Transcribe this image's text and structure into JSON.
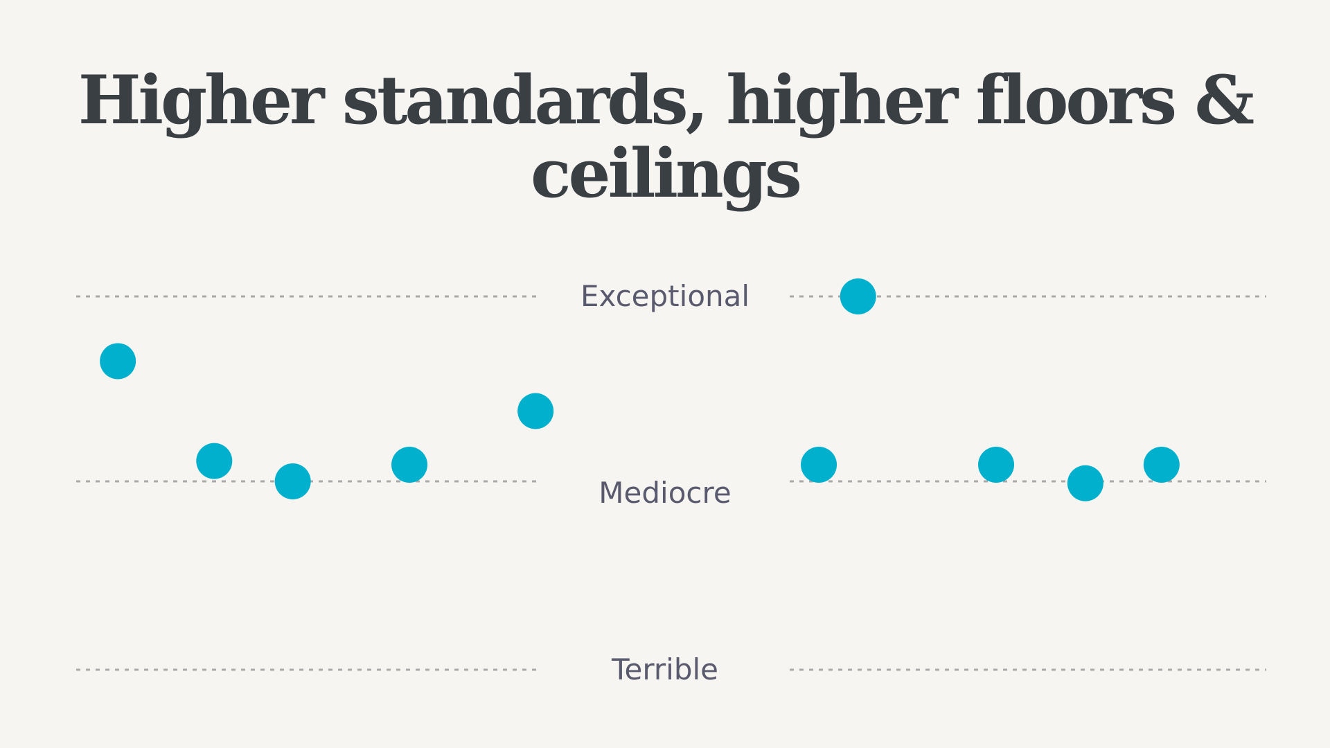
{
  "title": "Higher standards, higher floors & ceilings",
  "chart_data": {
    "type": "scatter",
    "title": "Higher standards, higher floors & ceilings",
    "levels": [
      {
        "name": "Exceptional",
        "value": 2
      },
      {
        "name": "Mediocre",
        "value": 1
      },
      {
        "name": "Terrible",
        "value": 0
      }
    ],
    "ylim": [
      0,
      2
    ],
    "xlim": [
      0,
      100
    ],
    "grid": false,
    "legend": "none",
    "colors": {
      "point": "#00b0cc",
      "guide": "#a9a9a9",
      "label": "#5a5a6e",
      "title": "#3a3f44"
    },
    "groups": [
      {
        "points": [
          {
            "x": 3.5,
            "y": 1.65
          },
          {
            "x": 11.6,
            "y": 1.11
          },
          {
            "x": 18.2,
            "y": 1.0
          },
          {
            "x": 28.0,
            "y": 1.09
          },
          {
            "x": 38.6,
            "y": 1.38
          }
        ]
      },
      {
        "points": [
          {
            "x": 65.7,
            "y": 2.0
          },
          {
            "x": 62.4,
            "y": 1.09
          },
          {
            "x": 77.3,
            "y": 1.09
          },
          {
            "x": 84.8,
            "y": 0.99
          },
          {
            "x": 91.2,
            "y": 1.09
          }
        ]
      }
    ]
  }
}
